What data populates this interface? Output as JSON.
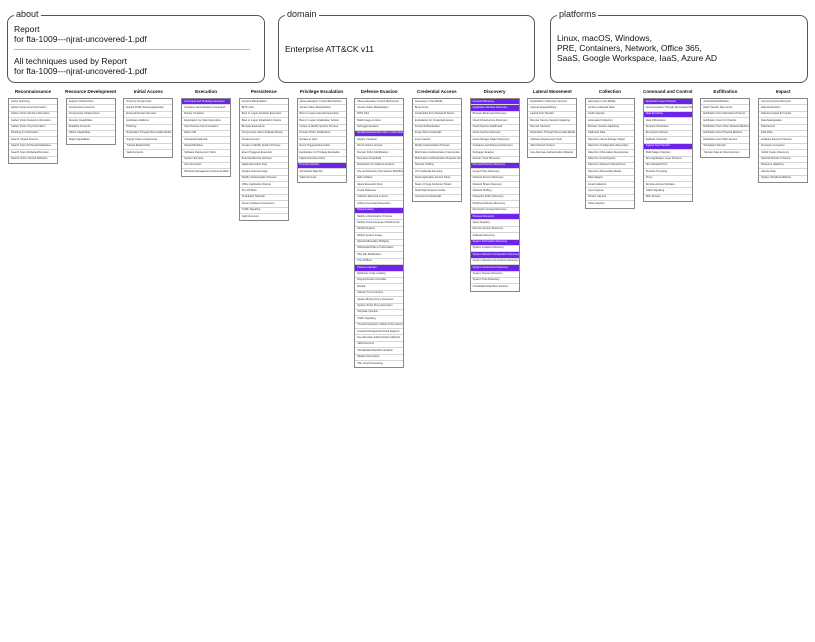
{
  "about": {
    "legend": "about",
    "lines": [
      "Report",
      "for fta-1009---njrat-uncovered-1.pdf"
    ],
    "lines2": [
      "All techniques used by Report",
      "for fta-1009---njrat-uncovered-1.pdf"
    ]
  },
  "domain": {
    "legend": "domain",
    "value": "Enterprise ATT&CK v11"
  },
  "platforms": {
    "legend": "platforms",
    "lines": [
      "Linux, macOS, Windows,",
      "PRE, Containers, Network, Office 365,",
      "SaaS, Google Workspace, IaaS, Azure AD"
    ]
  },
  "colors": {
    "highlight": "#6b24e8",
    "border": "#888888",
    "cell_divider": "#d6d6d6"
  },
  "tactics": [
    {
      "name": "Reconnaissance",
      "cells": [
        "Active Scanning",
        "Gather Victim Host Information",
        "Gather Victim Identity Information",
        "Gather Victim Network Information",
        "Gather Victim Org Information",
        "Phishing for Information",
        "Search Closed Sources",
        "Search Open Technical Databases",
        "Search Open Websites/Domains",
        "Search Victim-Owned Websites"
      ],
      "highlights": []
    },
    {
      "name": "Resource Development",
      "cells": [
        "Acquire Infrastructure",
        "Compromise Accounts",
        "Compromise Infrastructure",
        "Develop Capabilities",
        "Establish Accounts",
        "Obtain Capabilities",
        "Stage Capabilities"
      ],
      "highlights": []
    },
    {
      "name": "Initial Access",
      "cells": [
        "Drive-by Compromise",
        "Exploit Public-Facing Application",
        "External Remote Services",
        "Hardware Additions",
        "Phishing",
        "Replication Through Removable Media",
        "Supply Chain Compromise",
        "Trusted Relationship",
        "Valid Accounts"
      ],
      "highlights": []
    },
    {
      "name": "Execution",
      "cells": [
        "Command and Scripting Interpreter",
        "Container Administration Command",
        "Deploy Container",
        "Exploitation for Client Execution",
        "Inter-Process Communication",
        "Native API",
        "Scheduled Task/Job",
        "Shared Modules",
        "Software Deployment Tools",
        "System Services",
        "User Execution",
        "Windows Management Instrumentation"
      ],
      "highlights": [
        0
      ]
    },
    {
      "name": "Persistence",
      "cells": [
        "Account Manipulation",
        "BITS Jobs",
        "Boot or Logon Autostart Execution",
        "Boot or Logon Initialization Scripts",
        "Browser Extensions",
        "Compromise Client Software Binary",
        "Create Account",
        "Create or Modify System Process",
        "Event Triggered Execution",
        "External Remote Services",
        "Hijack Execution Flow",
        "Implant Internal Image",
        "Modify Authentication Process",
        "Office Application Startup",
        "Pre-OS Boot",
        "Scheduled Task/Job",
        "Server Software Component",
        "Traffic Signaling",
        "Valid Accounts"
      ],
      "highlights": []
    },
    {
      "name": "Privilege Escalation",
      "cells": [
        "Abuse Elevation Control Mechanism",
        "Access Token Manipulation",
        "Boot or Logon Autostart Execution",
        "Boot or Logon Initialization Scripts",
        "Create or Modify System Process",
        "Domain Policy Modification",
        "Escape to Host",
        "Event Triggered Execution",
        "Exploitation for Privilege Escalation",
        "Hijack Execution Flow",
        "Process Injection",
        "Scheduled Task/Job",
        "Valid Accounts"
      ],
      "highlights": [
        10
      ]
    },
    {
      "name": "Defense Evasion",
      "cells": [
        "Abuse Elevation Control Mechanism",
        "Access Token Manipulation",
        "BITS Jobs",
        "Build Image on Host",
        "Debugger Evasion",
        "Deobfuscate/Decode Files or Information",
        "Deploy Container",
        "Direct Volume Access",
        "Domain Policy Modification",
        "Execution Guardrails",
        "Exploitation for Defense Evasion",
        "File and Directory Permissions Modification",
        "Hide Artifacts",
        "Hijack Execution Flow",
        "Impair Defenses",
        "Indicator Removal on Host",
        "Indirect Command Execution",
        "Masquerading",
        "Modify Authentication Process",
        "Modify Cloud Compute Infrastructure",
        "Modify Registry",
        "Modify System Image",
        "Network Boundary Bridging",
        "Obfuscated Files or Information",
        "Plist File Modification",
        "Pre-OS Boot",
        "Process Injection",
        "Reflective Code Loading",
        "Rogue Domain Controller",
        "Rootkit",
        "Subvert Trust Controls",
        "System Binary Proxy Execution",
        "System Script Proxy Execution",
        "Template Injection",
        "Traffic Signaling",
        "Trusted Developer Utilities Proxy Execution",
        "Unused/Unsupported Cloud Regions",
        "Use Alternate Authentication Material",
        "Valid Accounts",
        "Virtualization/Sandbox Evasion",
        "Weaken Encryption",
        "XSL Script Processing"
      ],
      "highlights": [
        5,
        17,
        26
      ]
    },
    {
      "name": "Credential Access",
      "cells": [
        "Adversary-in-the-Middle",
        "Brute Force",
        "Credentials from Password Stores",
        "Exploitation for Credential Access",
        "Forced Authentication",
        "Forge Web Credentials",
        "Input Capture",
        "Modify Authentication Process",
        "Multi-Factor Authentication Interception",
        "Multi-Factor Authentication Request Generation",
        "Network Sniffing",
        "OS Credential Dumping",
        "Steal Application Access Token",
        "Steal or Forge Kerberos Tickets",
        "Steal Web Session Cookie",
        "Unsecured Credentials"
      ],
      "highlights": []
    },
    {
      "name": "Discovery",
      "cells": [
        "Account Discovery",
        "Application Window Discovery",
        "Browser Bookmark Discovery",
        "Cloud Infrastructure Discovery",
        "Cloud Service Dashboard",
        "Cloud Service Discovery",
        "Cloud Storage Object Discovery",
        "Container and Resource Discovery",
        "Debugger Evasion",
        "Domain Trust Discovery",
        "File and Directory Discovery",
        "Group Policy Discovery",
        "Network Service Discovery",
        "Network Share Discovery",
        "Network Sniffing",
        "Password Policy Discovery",
        "Peripheral Device Discovery",
        "Permission Groups Discovery",
        "Process Discovery",
        "Query Registry",
        "Remote System Discovery",
        "Software Discovery",
        "System Information Discovery",
        "System Location Discovery",
        "System Network Configuration Discovery",
        "System Network Connections Discovery",
        "System Owner/User Discovery",
        "System Service Discovery",
        "System Time Discovery",
        "Virtualization/Sandbox Evasion"
      ],
      "highlights": [
        0,
        1,
        10,
        18,
        22,
        24,
        26
      ]
    },
    {
      "name": "Lateral Movement",
      "cells": [
        "Exploitation of Remote Services",
        "Internal Spearphishing",
        "Lateral Tool Transfer",
        "Remote Service Session Hijacking",
        "Remote Services",
        "Replication Through Removable Media",
        "Software Deployment Tools",
        "Taint Shared Content",
        "Use Alternate Authentication Material"
      ],
      "highlights": []
    },
    {
      "name": "Collection",
      "cells": [
        "Adversary-in-the-Middle",
        "Archive Collected Data",
        "Audio Capture",
        "Automated Collection",
        "Browser Session Hijacking",
        "Clipboard Data",
        "Data from Cloud Storage Object",
        "Data from Configuration Repository",
        "Data from Information Repositories",
        "Data from Local System",
        "Data from Network Shared Drive",
        "Data from Removable Media",
        "Data Staged",
        "Email Collection",
        "Input Capture",
        "Screen Capture",
        "Video Capture"
      ],
      "highlights": []
    },
    {
      "name": "Command and Control",
      "cells": [
        "Application Layer Protocol",
        "Communication Through Removable Media",
        "Data Encoding",
        "Data Obfuscation",
        "Dynamic Resolution",
        "Encrypted Channel",
        "Fallback Channels",
        "Ingress Tool Transfer",
        "Multi-Stage Channels",
        "Non-Application Layer Protocol",
        "Non-Standard Port",
        "Protocol Tunneling",
        "Proxy",
        "Remote Access Software",
        "Traffic Signaling",
        "Web Service"
      ],
      "highlights": [
        0,
        2,
        7
      ]
    },
    {
      "name": "Exfiltration",
      "cells": [
        "Automated Exfiltration",
        "Data Transfer Size Limits",
        "Exfiltration Over Alternative Protocol",
        "Exfiltration Over C2 Channel",
        "Exfiltration Over Other Network Medium",
        "Exfiltration Over Physical Medium",
        "Exfiltration Over Web Service",
        "Scheduled Transfer",
        "Transfer Data to Cloud Account"
      ],
      "highlights": []
    },
    {
      "name": "Impact",
      "cells": [
        "Account Access Removal",
        "Data Destruction",
        "Data Encrypted for Impact",
        "Data Manipulation",
        "Defacement",
        "Disk Wipe",
        "Endpoint Denial of Service",
        "Firmware Corruption",
        "Inhibit System Recovery",
        "Network Denial of Service",
        "Resource Hijacking",
        "Service Stop",
        "System Shutdown/Reboot"
      ],
      "highlights": []
    }
  ]
}
